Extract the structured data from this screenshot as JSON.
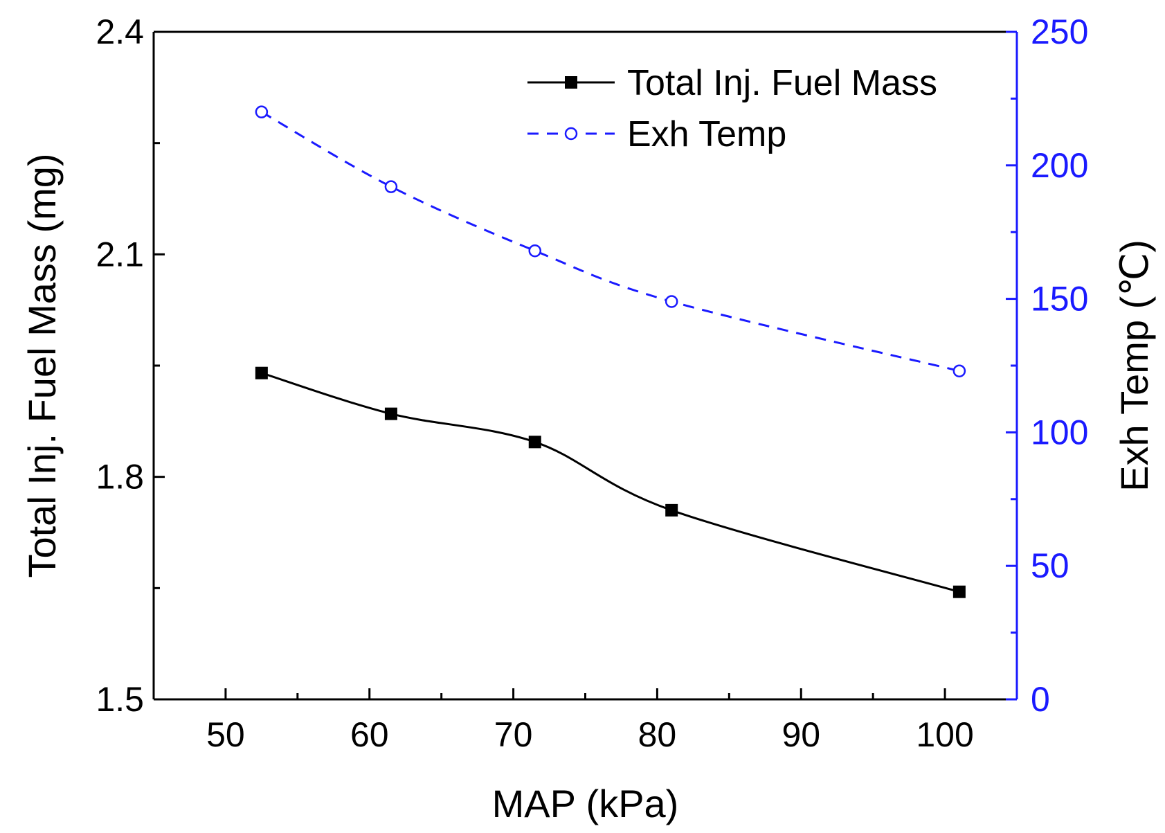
{
  "chart_data": {
    "type": "line",
    "xlabel": "MAP (kPa)",
    "ylabel_left": "Total Inj. Fuel Mass (mg)",
    "ylabel_right": "Exh Temp (℃)",
    "xlim": [
      45,
      105
    ],
    "ylim_left": [
      1.5,
      2.4
    ],
    "ylim_right": [
      0,
      250
    ],
    "x_ticks": [
      50,
      60,
      70,
      80,
      90,
      100
    ],
    "y_left_ticks": [
      1.5,
      1.8,
      2.1,
      2.4
    ],
    "y_right_ticks": [
      0,
      50,
      100,
      150,
      200,
      250
    ],
    "grid": false,
    "legend_position": "top-right",
    "colors": {
      "fuel": "#000000",
      "temp": "#1a1aff",
      "right_axis": "#1a1aff"
    },
    "series": [
      {
        "name": "Total Inj. Fuel Mass",
        "axis": "left",
        "marker": "filled-square",
        "line": "solid",
        "x": [
          52.5,
          61.5,
          71.5,
          81,
          101
        ],
        "values": [
          1.94,
          1.885,
          1.847,
          1.755,
          1.645
        ]
      },
      {
        "name": "Exh Temp",
        "axis": "right",
        "marker": "open-circle",
        "line": "dashed",
        "x": [
          52.5,
          61.5,
          71.5,
          81,
          101
        ],
        "values": [
          220,
          192,
          168,
          149,
          123
        ]
      }
    ]
  }
}
